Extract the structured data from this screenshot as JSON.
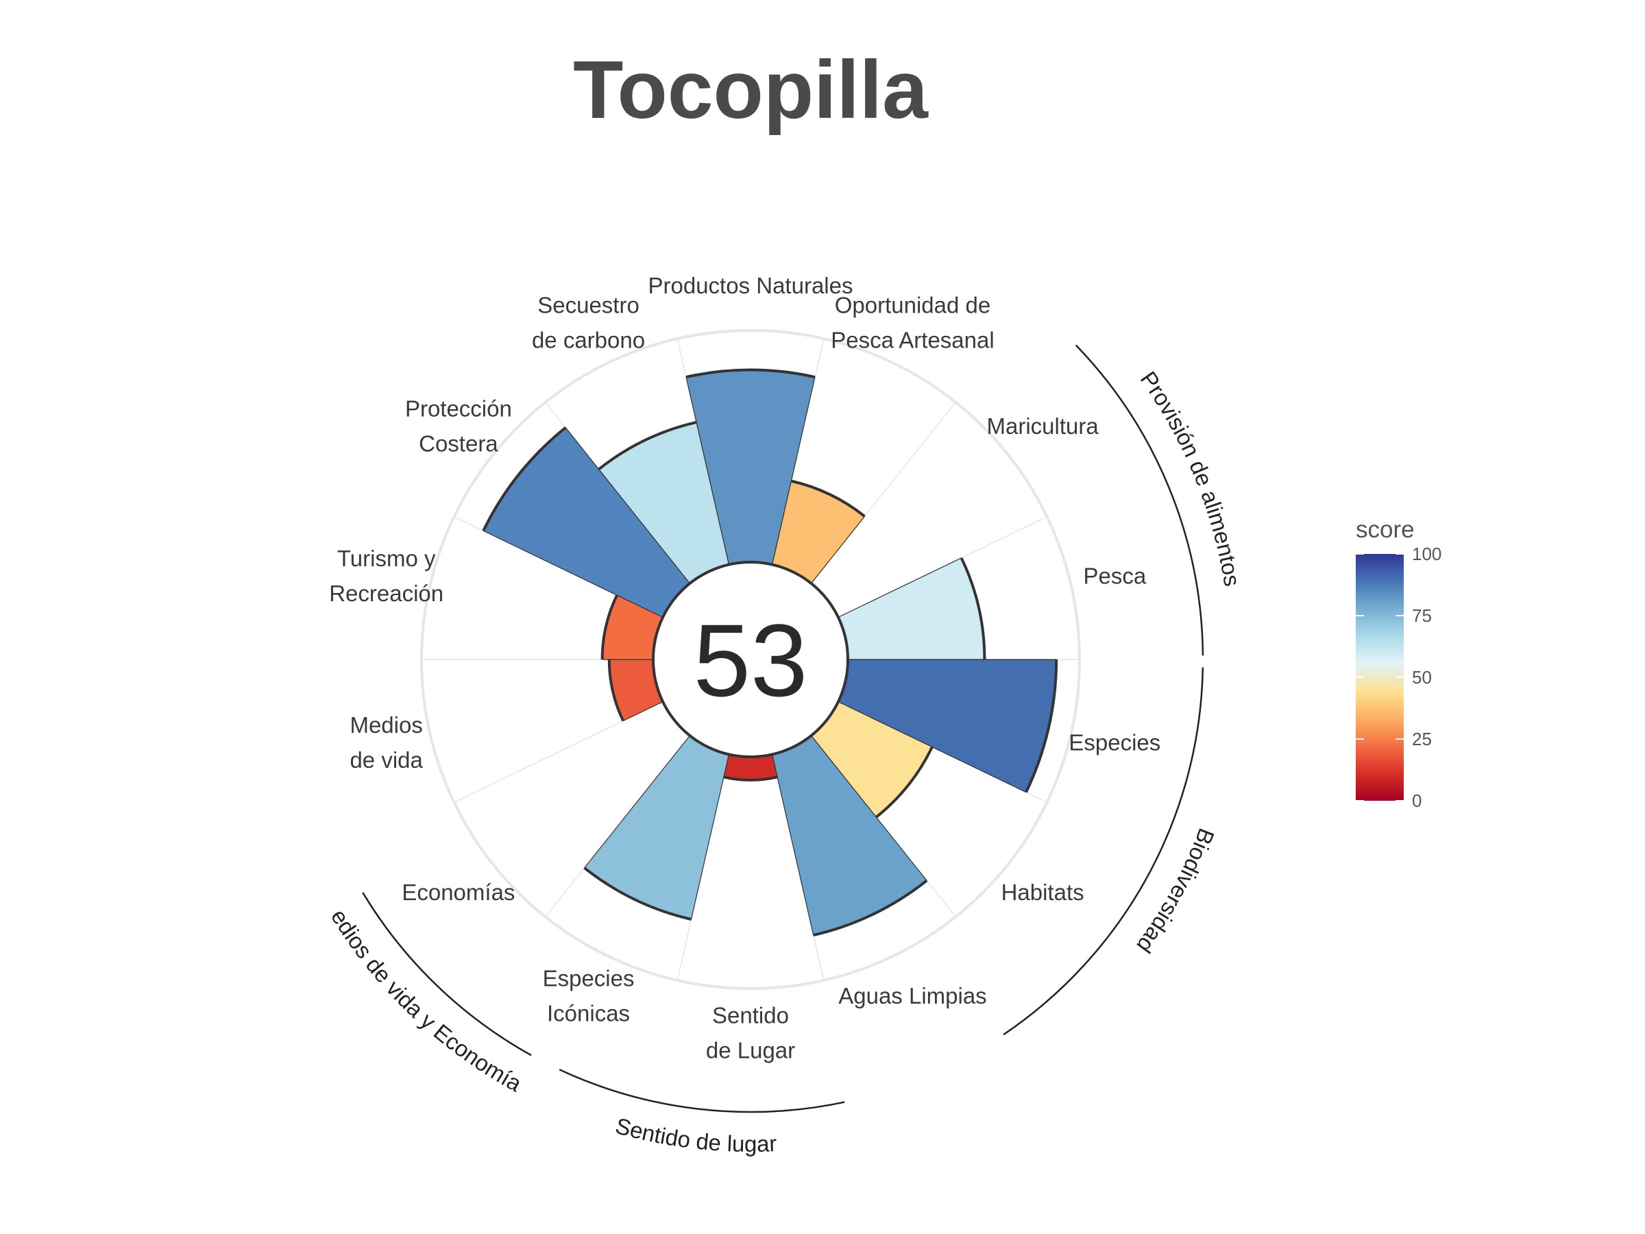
{
  "chart_data": {
    "type": "polar-bar",
    "title": "Tocopilla",
    "overall_score": "53",
    "categories": [
      {
        "label": "Productos Naturales",
        "value": 83
      },
      {
        "label": "Oportunidad de\nPesca Artesanal",
        "value": 37
      },
      {
        "label": "Maricultura",
        "value": 0
      },
      {
        "label": "Pesca",
        "value": 59
      },
      {
        "label": "Especies",
        "value": 90
      },
      {
        "label": "Habitats",
        "value": 45
      },
      {
        "label": "Aguas Limpias",
        "value": 80
      },
      {
        "label": "Sentido\nde Lugar",
        "value": 10
      },
      {
        "label": "Especies\nIcónicas",
        "value": 73
      },
      {
        "label": "Economías",
        "value": 0
      },
      {
        "label": "Medios\nde vida",
        "value": 19
      },
      {
        "label": "Turismo y\nRecreación",
        "value": 22
      },
      {
        "label": "Protección\nCostera",
        "value": 86
      },
      {
        "label": "Secuestro\nde carbono",
        "value": 63
      }
    ],
    "groups": [
      {
        "label": "Provisión de alimentos"
      },
      {
        "label": "Biodiversidad"
      },
      {
        "label": "Sentido de lugar"
      },
      {
        "label": "Medios de vida y Economías"
      }
    ],
    "ylim": [
      0,
      100
    ],
    "legend": {
      "title": "score",
      "ticks": [
        "0",
        "25",
        "50",
        "75",
        "100"
      ],
      "position": "right"
    },
    "colors": {
      "scale": [
        "#a50026",
        "#d73027",
        "#f46d43",
        "#fdae61",
        "#fee090",
        "#e0f3f8",
        "#abd9e9",
        "#74add1",
        "#4575b4",
        "#313695"
      ],
      "grid": "#e6e6e6",
      "outline": "#333333"
    }
  }
}
